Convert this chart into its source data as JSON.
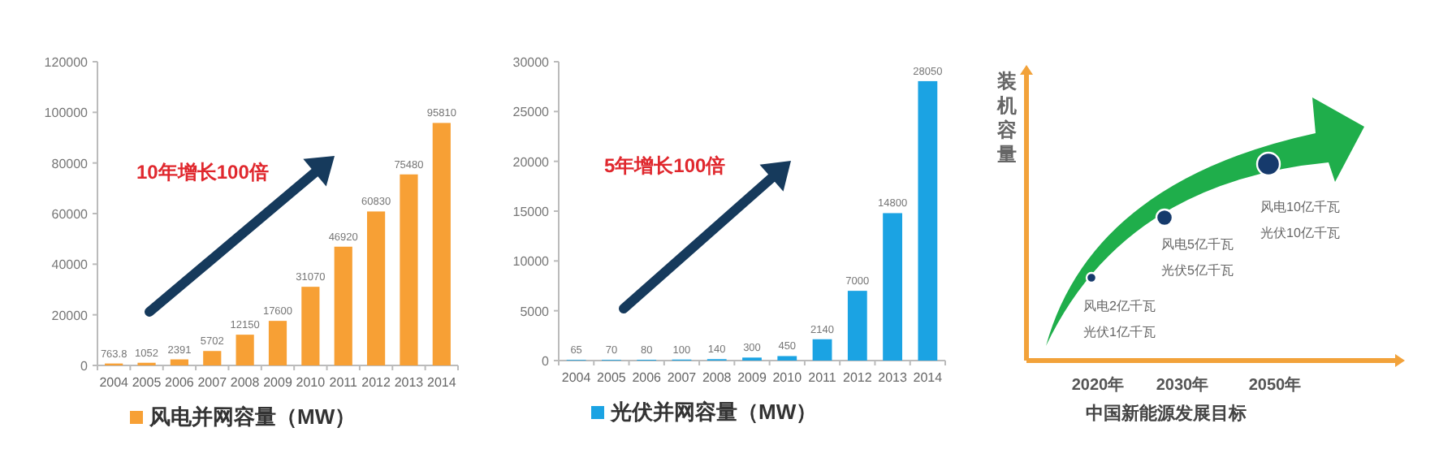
{
  "chart_data": [
    {
      "type": "bar",
      "categories": [
        "2004",
        "2005",
        "2006",
        "2007",
        "2008",
        "2009",
        "2010",
        "2011",
        "2012",
        "2013",
        "2014"
      ],
      "series": [
        {
          "name": "风电并网容量（MW）",
          "color": "#f7a035",
          "values": [
            763.8,
            1052,
            2391,
            5702,
            12150,
            17600,
            31070,
            46920,
            60830,
            75480,
            95810
          ]
        }
      ],
      "ylim": [
        0,
        120000
      ],
      "yticks": [
        0,
        20000,
        40000,
        60000,
        80000,
        100000,
        120000
      ],
      "data_labels": true,
      "legend": "bottom",
      "grid": false,
      "annotations": [
        "10年增长100倍"
      ]
    },
    {
      "type": "bar",
      "categories": [
        "2004",
        "2005",
        "2006",
        "2007",
        "2008",
        "2009",
        "2010",
        "2011",
        "2012",
        "2013",
        "2014"
      ],
      "series": [
        {
          "name": "光伏并网容量（MW）",
          "color": "#1ba3e3",
          "values": [
            65,
            70,
            80,
            100,
            140,
            300,
            450,
            2140,
            7000,
            14800,
            28050
          ]
        }
      ],
      "ylim": [
        0,
        30000
      ],
      "yticks": [
        0,
        5000,
        10000,
        15000,
        20000,
        25000,
        30000
      ],
      "data_labels": true,
      "legend": "bottom",
      "grid": false,
      "annotations": [
        "5年增长100倍"
      ]
    },
    {
      "type": "other",
      "ylabel": "装机容量",
      "xlabel": "中国新能源发展目标",
      "annotations": [
        "2020年",
        "2030年",
        "2050年",
        "风电2亿千瓦",
        "光伏1亿千瓦",
        "风电5亿千瓦",
        "光伏5亿千瓦",
        "风电10亿千瓦",
        "光伏10亿千瓦"
      ]
    }
  ]
}
